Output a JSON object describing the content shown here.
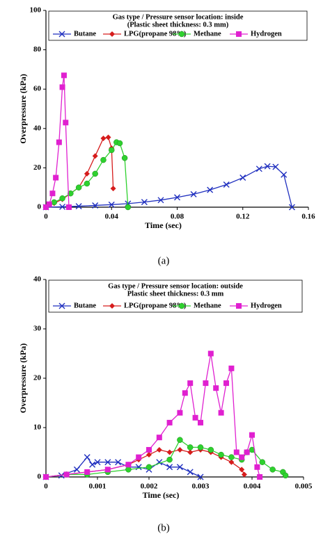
{
  "chart_data": [
    {
      "type": "line",
      "caption": "(a)",
      "x_label": "Time (sec)",
      "y_label": "Overpressure (kPa)",
      "legend_title": [
        "Gas type / Pressure sensor location: inside",
        "(Plastic sheet thickness: 0.3 mm)"
      ],
      "xlim": [
        0,
        0.16
      ],
      "ylim": [
        0,
        100
      ],
      "xticks": [
        0,
        0.04,
        0.08,
        0.12,
        0.16
      ],
      "yticks": [
        0,
        20,
        40,
        60,
        80,
        100
      ],
      "series": [
        {
          "name": "Butane",
          "color": "#1f2fbf",
          "marker": "x",
          "x": [
            0,
            0.01,
            0.02,
            0.03,
            0.04,
            0.05,
            0.06,
            0.07,
            0.08,
            0.09,
            0.1,
            0.11,
            0.12,
            0.13,
            0.135,
            0.14,
            0.145,
            0.15
          ],
          "values": [
            0,
            0.2,
            0.5,
            0.9,
            1.3,
            1.8,
            2.6,
            3.6,
            5,
            6.6,
            8.8,
            11.5,
            15,
            19.5,
            20.8,
            20.5,
            16.5,
            0
          ]
        },
        {
          "name": "LPG(propane 98%)",
          "color": "#d61c1c",
          "marker": "diamond",
          "x": [
            0,
            0.005,
            0.01,
            0.015,
            0.02,
            0.025,
            0.03,
            0.035,
            0.038,
            0.04,
            0.041
          ],
          "values": [
            0,
            2,
            4,
            7,
            10,
            17,
            26,
            35,
            35.5,
            30,
            9.5
          ]
        },
        {
          "name": "Methane",
          "color": "#2ed12e",
          "marker": "circle",
          "x": [
            0,
            0.005,
            0.01,
            0.015,
            0.02,
            0.025,
            0.03,
            0.035,
            0.04,
            0.043,
            0.045,
            0.048,
            0.05
          ],
          "values": [
            0,
            2.5,
            4.5,
            7,
            10,
            12,
            17,
            24,
            29,
            33,
            32.5,
            25,
            0
          ]
        },
        {
          "name": "Hydrogen",
          "color": "#e020d0",
          "marker": "square",
          "x": [
            0,
            0.002,
            0.004,
            0.006,
            0.008,
            0.01,
            0.011,
            0.012,
            0.014
          ],
          "values": [
            0,
            1.5,
            7,
            15,
            33,
            61,
            67,
            43,
            0
          ]
        }
      ]
    },
    {
      "type": "line",
      "caption": "(b)",
      "x_label": "Time (sec)",
      "y_label": "Overpressure (kPa)",
      "legend_title": [
        "Gas type / Pressure sensor location: outside",
        "Plastic sheet thickness: 0.3 mm"
      ],
      "xlim": [
        0,
        0.005
      ],
      "ylim": [
        0,
        40
      ],
      "xticks": [
        0,
        0.001,
        0.002,
        0.003,
        0.004,
        0.005
      ],
      "yticks": [
        0,
        10,
        20,
        30,
        40
      ],
      "series": [
        {
          "name": "Butane",
          "color": "#1f2fbf",
          "marker": "x",
          "x": [
            0,
            0.0003,
            0.0006,
            0.0008,
            0.0009,
            0.001,
            0.0012,
            0.0014,
            0.0016,
            0.0018,
            0.002,
            0.0022,
            0.0024,
            0.0026,
            0.0028,
            0.003
          ],
          "values": [
            0,
            0.3,
            1.5,
            4,
            2.5,
            3,
            3,
            3,
            2,
            2,
            1.5,
            3,
            2,
            2,
            1,
            0
          ]
        },
        {
          "name": "LPG(propane 98%)",
          "color": "#d61c1c",
          "marker": "diamond",
          "x": [
            0,
            0.0004,
            0.0008,
            0.0012,
            0.0016,
            0.0018,
            0.002,
            0.0022,
            0.0024,
            0.0026,
            0.0028,
            0.003,
            0.0032,
            0.0034,
            0.0036,
            0.0038,
            0.00385
          ],
          "values": [
            0,
            0.5,
            1,
            1.5,
            2.5,
            3.5,
            4.5,
            5.5,
            5,
            5.5,
            5,
            5.5,
            5,
            4,
            3,
            1.5,
            0.5
          ]
        },
        {
          "name": "Methane",
          "color": "#2ed12e",
          "marker": "circle",
          "x": [
            0,
            0.0004,
            0.0008,
            0.0012,
            0.0016,
            0.002,
            0.0024,
            0.0026,
            0.0028,
            0.003,
            0.0032,
            0.0034,
            0.0036,
            0.0038,
            0.0039,
            0.004,
            0.0042,
            0.0044,
            0.0046,
            0.00465
          ],
          "values": [
            0,
            0.5,
            0.5,
            1,
            1.5,
            2,
            3.5,
            7.5,
            6,
            6,
            5.5,
            4.5,
            4,
            3.5,
            5,
            5.5,
            3,
            1.5,
            1,
            0.3
          ]
        },
        {
          "name": "Hydrogen",
          "color": "#e020d0",
          "marker": "square",
          "x": [
            0,
            0.0004,
            0.0008,
            0.0012,
            0.0016,
            0.0018,
            0.002,
            0.0022,
            0.0024,
            0.0026,
            0.0027,
            0.0028,
            0.0029,
            0.003,
            0.0031,
            0.0032,
            0.0033,
            0.0034,
            0.0035,
            0.0036,
            0.0037,
            0.0038,
            0.0039,
            0.004,
            0.0041,
            0.00415
          ],
          "values": [
            0,
            0.5,
            1,
            1.5,
            2.5,
            4,
            5.5,
            8,
            11,
            13,
            17,
            19,
            12,
            11,
            19,
            25,
            18,
            13,
            19,
            22,
            5,
            4,
            5,
            8.5,
            2,
            0
          ]
        }
      ]
    }
  ]
}
